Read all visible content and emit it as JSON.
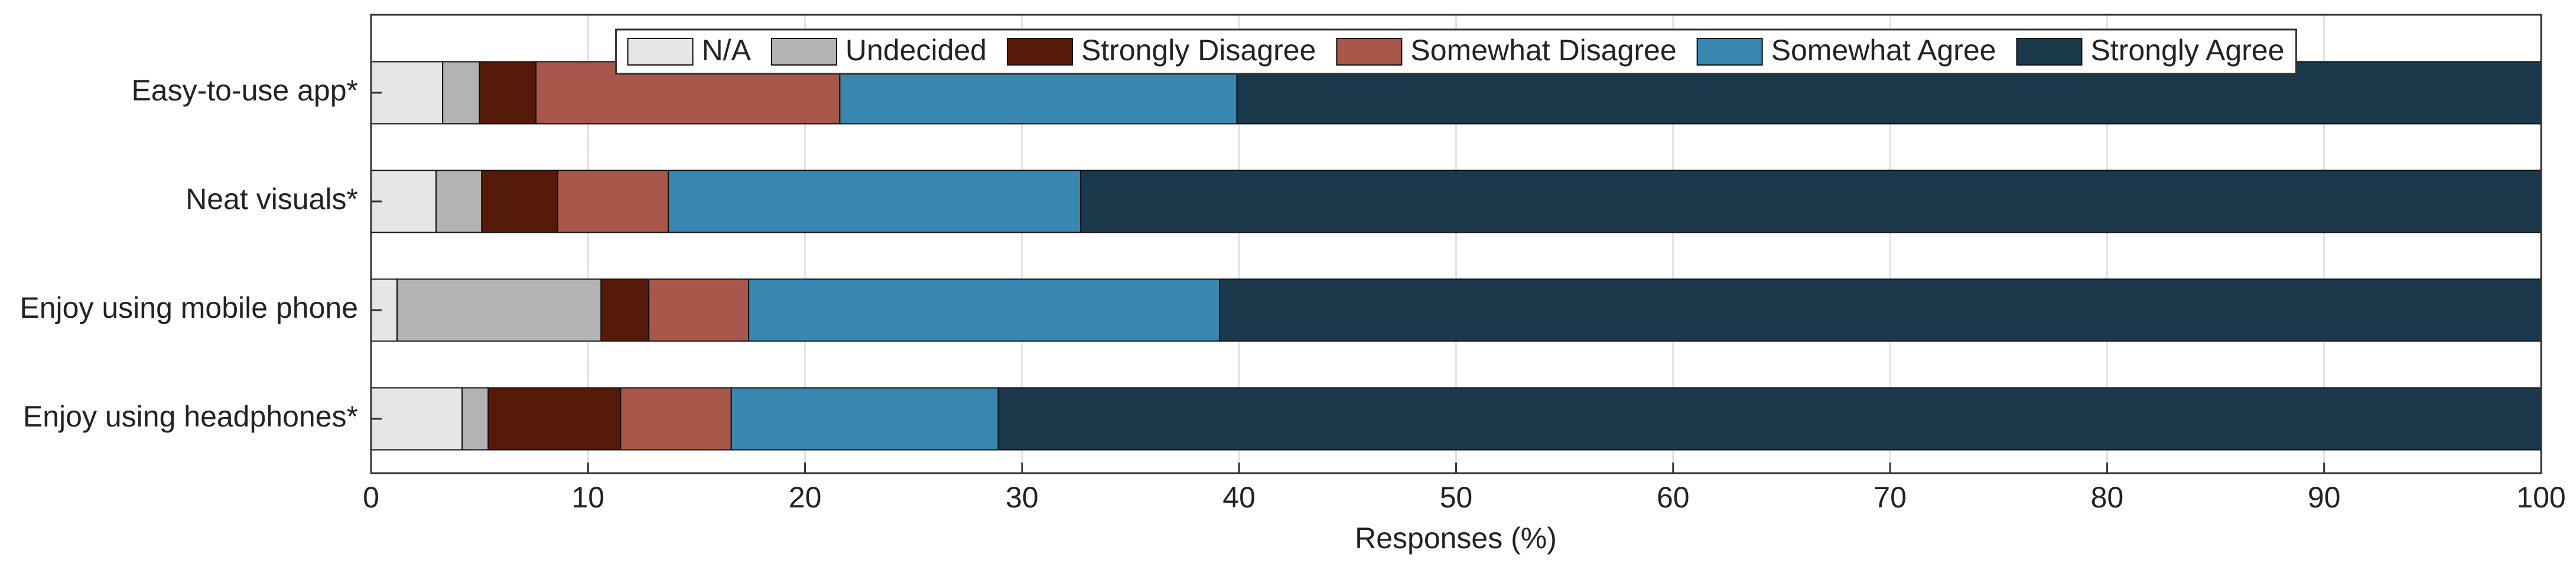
{
  "chart_data": {
    "type": "stacked-bar-horizontal",
    "xlabel": "Responses (%)",
    "categories": [
      "Easy-to-use app*",
      "Neat visuals*",
      "Enjoy using mobile phone",
      "Enjoy using headphones*"
    ],
    "series": [
      {
        "name": "N/A",
        "color": "#e6e6e6",
        "values": [
          3.3,
          3.0,
          1.2,
          4.2
        ]
      },
      {
        "name": "Undecided",
        "color": "#b3b3b3",
        "values": [
          1.7,
          2.1,
          9.4,
          1.2
        ]
      },
      {
        "name": "Strongly Disagree",
        "color": "#561a08",
        "values": [
          2.6,
          3.5,
          2.2,
          6.1
        ]
      },
      {
        "name": "Somewhat Disagree",
        "color": "#a8574a",
        "values": [
          14.0,
          5.1,
          4.6,
          5.1
        ]
      },
      {
        "name": "Somewhat Agree",
        "color": "#3787b0",
        "values": [
          18.3,
          19.0,
          21.7,
          12.3
        ]
      },
      {
        "name": "Strongly Agree",
        "color": "#1a394b",
        "values": [
          60.1,
          67.3,
          60.9,
          71.1
        ]
      }
    ],
    "xlim": [
      0,
      100
    ],
    "xticks": [
      0,
      10,
      20,
      30,
      40,
      50,
      60,
      70,
      80,
      90,
      100
    ],
    "grid": true,
    "legend": "top"
  }
}
